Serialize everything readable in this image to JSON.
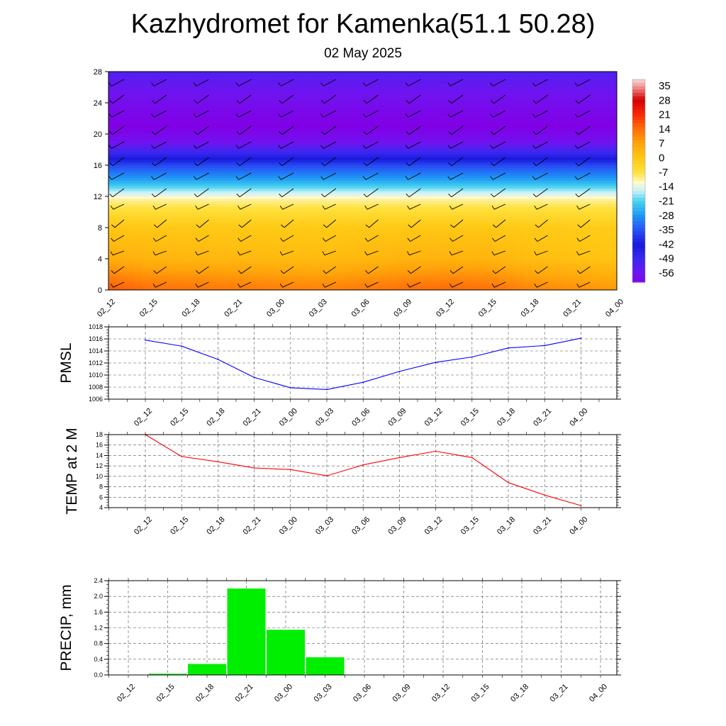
{
  "title": "Kazhydromet for Kamenka(51.1 50.28)",
  "subtitle": "02 May 2025",
  "time_labels": [
    "02_12",
    "02_15",
    "02_18",
    "02_21",
    "03_00",
    "03_03",
    "03_06",
    "03_09",
    "03_12",
    "03_15",
    "03_18",
    "03_21",
    "04_00"
  ],
  "chart_data": [
    {
      "type": "heatmap",
      "description_key": "temperature-height cross section with wind barbs",
      "x": [
        "02_12",
        "02_15",
        "02_18",
        "02_21",
        "03_00",
        "03_03",
        "03_06",
        "03_09",
        "03_12",
        "03_15",
        "03_18",
        "03_21",
        "04_00"
      ],
      "yticks": [
        "0",
        "4",
        "8",
        "12",
        "16",
        "20",
        "24",
        "28"
      ],
      "ylim": [
        0,
        28
      ],
      "colorbar": {
        "labels": [
          "35",
          "28",
          "21",
          "14",
          "7",
          "0",
          "-7",
          "-14",
          "-21",
          "-28",
          "-35",
          "-42",
          "-49",
          "-56"
        ],
        "range": [
          -60,
          38
        ]
      },
      "profile": {
        "heights": [
          0,
          4,
          8,
          11.5,
          12.5,
          14,
          16,
          17.5,
          19,
          21,
          24,
          28
        ],
        "temps": [
          14,
          4,
          0,
          -10,
          -16,
          -26,
          -36,
          -48,
          -57,
          -62,
          -58,
          -52
        ]
      },
      "surface_temps": [
        18,
        14,
        13,
        12,
        11,
        10,
        12,
        14,
        15,
        14,
        9,
        7,
        5
      ]
    },
    {
      "type": "line",
      "ylabel": "PMSL",
      "x": [
        "02_12",
        "02_15",
        "02_18",
        "02_21",
        "03_00",
        "03_03",
        "03_06",
        "03_09",
        "03_12",
        "03_15",
        "03_18",
        "03_21",
        "04_00"
      ],
      "yticks": [
        "1006",
        "1008",
        "1010",
        "1012",
        "1014",
        "1016",
        "1018"
      ],
      "ylim": [
        1006,
        1018
      ],
      "series": [
        {
          "values": [
            1015.8,
            1014.8,
            1012.6,
            1009.6,
            1007.9,
            1007.6,
            1008.8,
            1010.6,
            1012.1,
            1013.0,
            1014.5,
            1014.9,
            1016.1
          ],
          "color": "#0000ff"
        }
      ]
    },
    {
      "type": "line",
      "ylabel": "TEMP at 2 M",
      "x": [
        "02_12",
        "02_15",
        "02_18",
        "02_21",
        "03_00",
        "03_03",
        "03_06",
        "03_09",
        "03_12",
        "03_15",
        "03_18",
        "03_21",
        "04_00"
      ],
      "yticks": [
        "4",
        "6",
        "8",
        "10",
        "12",
        "14",
        "16",
        "18"
      ],
      "ylim": [
        4,
        18
      ],
      "series": [
        {
          "values": [
            18.0,
            13.8,
            12.8,
            11.6,
            11.3,
            10.1,
            12.2,
            13.6,
            14.8,
            13.6,
            8.8,
            6.4,
            4.4
          ],
          "color": "#ff0000"
        }
      ]
    },
    {
      "type": "bar",
      "ylabel": "PRECIP, mm",
      "x": [
        "02_12",
        "02_15",
        "02_18",
        "02_21",
        "03_00",
        "03_03",
        "03_06",
        "03_09",
        "03_12",
        "03_15",
        "03_18",
        "03_21",
        "04_00"
      ],
      "yticks": [
        "0.0",
        "0.4",
        "0.8",
        "1.2",
        "1.6",
        "2.0",
        "2.4"
      ],
      "ylim": [
        0,
        2.4
      ],
      "values": [
        0,
        0.03,
        0.28,
        2.2,
        1.15,
        0.45,
        0,
        0,
        0,
        0,
        0,
        0,
        0
      ],
      "color": "#00ee00"
    }
  ]
}
